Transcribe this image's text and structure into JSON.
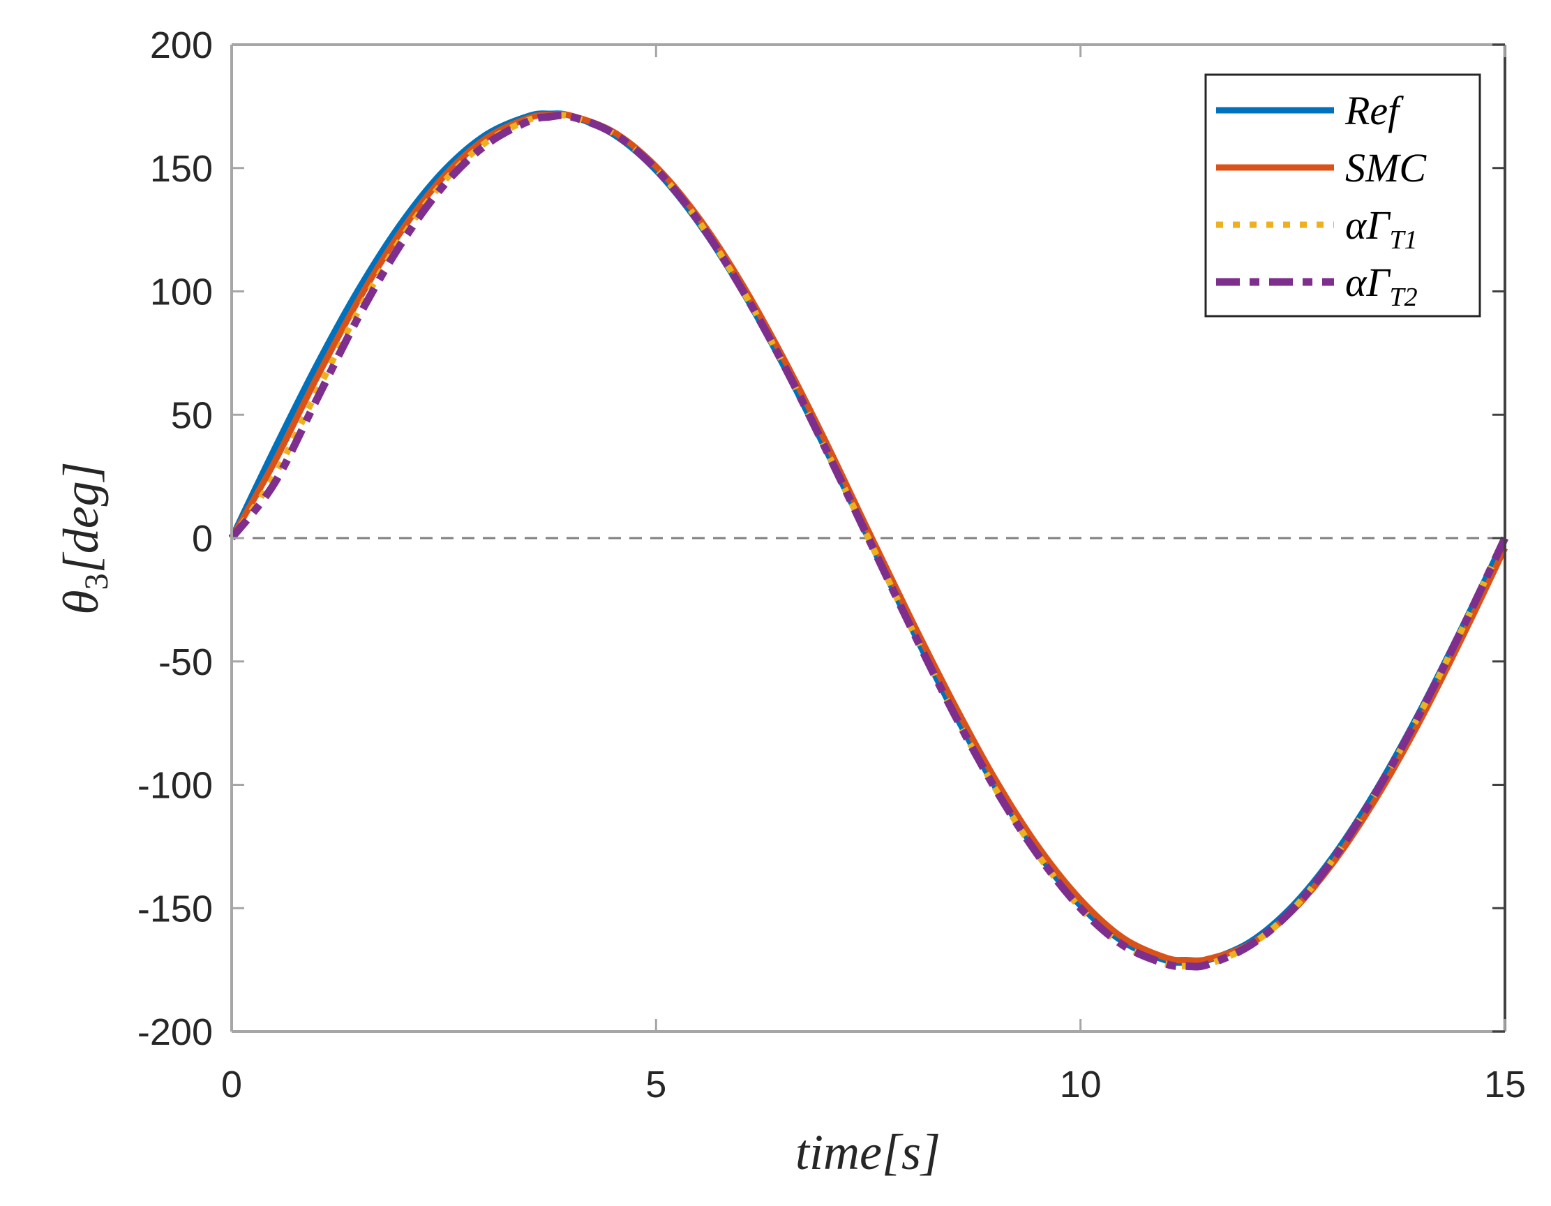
{
  "chart_data": {
    "type": "line",
    "title": "",
    "xlabel": "time[s]",
    "ylabel": "θ3[deg]",
    "xlim": [
      0,
      15
    ],
    "ylim": [
      -200,
      200
    ],
    "xticks": [
      0,
      5,
      10,
      15
    ],
    "yticks": [
      200,
      150,
      100,
      50,
      0,
      -50,
      -100,
      -150,
      -200
    ],
    "grid": false,
    "zero_line": {
      "y": 0,
      "style": "dashed",
      "color": "#808080"
    },
    "legend_position": "upper right",
    "x": [
      0,
      0.5,
      1,
      1.5,
      2,
      2.5,
      3,
      3.5,
      3.75,
      4,
      4.5,
      5,
      5.5,
      6,
      6.5,
      7,
      7.5,
      8,
      8.5,
      9,
      9.5,
      10,
      10.5,
      11,
      11.25,
      11.5,
      12,
      12.5,
      13,
      13.5,
      14,
      14.5,
      15
    ],
    "series": [
      {
        "name": "Ref",
        "label_main": "Ref",
        "label_sub": "",
        "color": "#0072BD",
        "dash": "",
        "width": 9,
        "values": [
          0,
          35.8,
          70.0,
          101.1,
          127.8,
          149.0,
          163.6,
          171.1,
          172,
          171.1,
          163.6,
          149.0,
          127.8,
          101.1,
          70.0,
          35.8,
          0,
          -35.8,
          -70.0,
          -101.1,
          -127.8,
          -149.0,
          -163.6,
          -171.1,
          -172,
          -171.1,
          -163.6,
          -149.0,
          -127.8,
          -101.1,
          -70.0,
          -35.8,
          0
        ]
      },
      {
        "name": "SMC",
        "label_main": "SMC",
        "label_sub": "",
        "color": "#D95319",
        "dash": "",
        "width": 9,
        "values": [
          0,
          30.5,
          64.8,
          96.8,
          124.5,
          146.6,
          162.1,
          170.3,
          171.5,
          171.2,
          164.6,
          150.6,
          130.0,
          103.8,
          73.0,
          39.0,
          3.0,
          -32.5,
          -66.5,
          -98.0,
          -125.0,
          -146.5,
          -162.0,
          -170.0,
          -171.0,
          -170.6,
          -164.5,
          -151.0,
          -130.5,
          -104.5,
          -74.0,
          -40.0,
          -4.0
        ]
      },
      {
        "name": "αΓT1",
        "label_main": "αΓ",
        "label_sub": "T1",
        "color": "#EDB120",
        "dash": "10 14",
        "width": 9,
        "values": [
          0,
          25.0,
          59.0,
          92.5,
          121.5,
          144.5,
          160.5,
          169.5,
          171.0,
          170.8,
          164.0,
          149.5,
          128.5,
          101.5,
          70.5,
          36.0,
          0,
          -36.0,
          -70.5,
          -101.8,
          -128.5,
          -150.0,
          -165.0,
          -172.5,
          -173.5,
          -172.8,
          -165.0,
          -150.5,
          -129.0,
          -102.0,
          -71.0,
          -36.5,
          0
        ]
      },
      {
        "name": "αΓT2",
        "label_main": "αΓ",
        "label_sub": "T2",
        "color": "#7E2F8E",
        "dash": "34 14 14 14",
        "width": 11,
        "values": [
          0,
          22.0,
          56.0,
          90.0,
          119.5,
          143.0,
          159.5,
          169.0,
          170.8,
          170.8,
          164.0,
          149.5,
          128.5,
          101.5,
          70.5,
          36.0,
          0,
          -36.0,
          -70.5,
          -101.8,
          -128.5,
          -150.0,
          -165.0,
          -172.5,
          -173.5,
          -172.8,
          -165.0,
          -150.5,
          -129.0,
          -102.0,
          -71.0,
          -36.5,
          0
        ]
      }
    ]
  },
  "axes": {
    "x_tick_labels": [
      "0",
      "5",
      "10",
      "15"
    ],
    "y_tick_labels": [
      "200",
      "150",
      "100",
      "50",
      "0",
      "-50",
      "-100",
      "-150",
      "-200"
    ],
    "xlabel_main": "time[s]",
    "ylabel_main": "θ",
    "ylabel_sub": "3",
    "ylabel_rest": "[deg]"
  }
}
